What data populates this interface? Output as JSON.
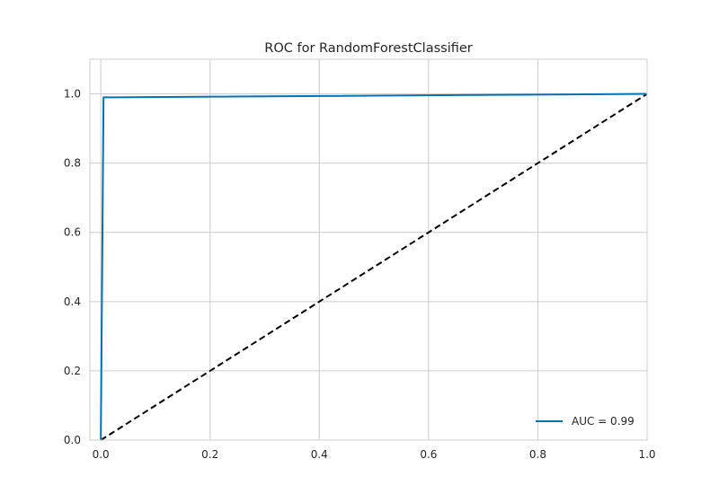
{
  "chart_data": {
    "type": "line",
    "title": "ROC for RandomForestClassifier",
    "xlabel": "",
    "ylabel": "",
    "xlim": [
      -0.02,
      1.0
    ],
    "ylim": [
      0.0,
      1.1
    ],
    "xticks": [
      0.0,
      0.2,
      0.4,
      0.6,
      0.8,
      1.0
    ],
    "xtick_labels": [
      "0.0",
      "0.2",
      "0.4",
      "0.6",
      "0.8",
      "1.0"
    ],
    "yticks": [
      0.0,
      0.2,
      0.4,
      0.6,
      0.8,
      1.0
    ],
    "ytick_labels": [
      "0.0",
      "0.2",
      "0.4",
      "0.6",
      "0.8",
      "1.0"
    ],
    "grid": true,
    "legend_position": "bottom-right",
    "series": [
      {
        "name": "AUC = 0.99",
        "color": "#0072b2",
        "style": "solid",
        "x": [
          0.0,
          0.005,
          1.0
        ],
        "y": [
          0.0,
          0.99,
          1.0
        ]
      },
      {
        "color": "#000000",
        "style": "dashed",
        "x": [
          0.0,
          1.0
        ],
        "y": [
          0.0,
          1.0
        ]
      }
    ]
  }
}
